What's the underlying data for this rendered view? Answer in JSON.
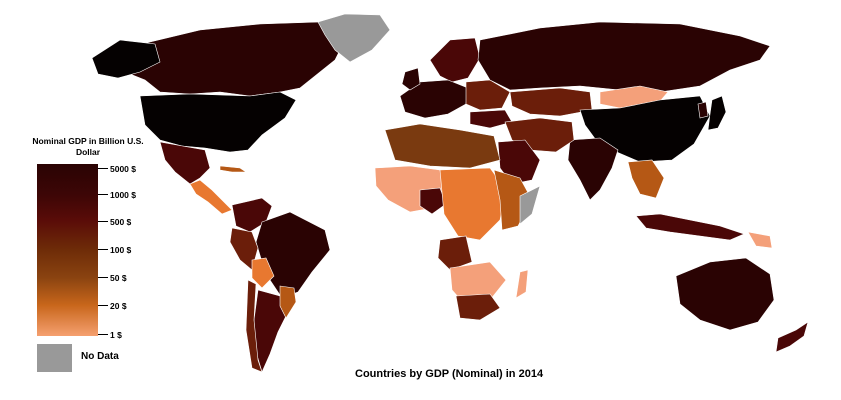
{
  "title": "Countries by GDP (Nominal) in 2014",
  "legend": {
    "title": "Nominal GDP in Billion U.S. Dollar",
    "ticks": [
      "5000 $",
      "1000 $",
      "500 $",
      "100 $",
      "50 $",
      "20 $",
      "1 $"
    ],
    "no_data_label": "No Data",
    "no_data_color": "#999999"
  },
  "colors": {
    "gt5000": "#050101",
    "r1000_5000": "#2a0303",
    "r500_1000": "#4a0707",
    "r100_500": "#6b1e0a",
    "r50_100": "#7a3a10",
    "r20_50": "#b55815",
    "r1_20_dark": "#e87830",
    "r1_20_light": "#f4a07a",
    "nodata": "#999999",
    "ocean": "#ffffff"
  }
}
